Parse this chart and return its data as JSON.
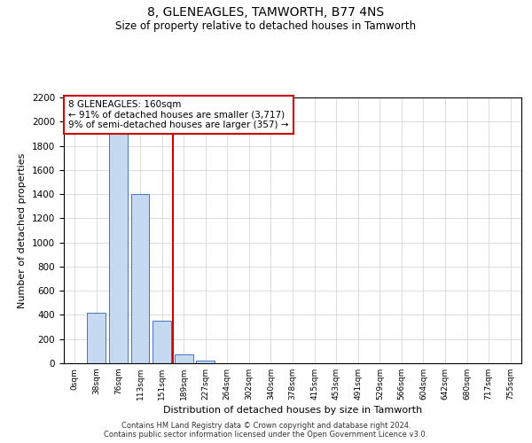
{
  "title": "8, GLENEAGLES, TAMWORTH, B77 4NS",
  "subtitle": "Size of property relative to detached houses in Tamworth",
  "xlabel": "Distribution of detached houses by size in Tamworth",
  "ylabel": "Number of detached properties",
  "bar_labels": [
    "0sqm",
    "38sqm",
    "76sqm",
    "113sqm",
    "151sqm",
    "189sqm",
    "227sqm",
    "264sqm",
    "302sqm",
    "340sqm",
    "378sqm",
    "415sqm",
    "453sqm",
    "491sqm",
    "529sqm",
    "566sqm",
    "604sqm",
    "642sqm",
    "680sqm",
    "717sqm",
    "755sqm"
  ],
  "bar_values": [
    0,
    420,
    1900,
    1400,
    350,
    70,
    20,
    0,
    0,
    0,
    0,
    0,
    0,
    0,
    0,
    0,
    0,
    0,
    0,
    0,
    0
  ],
  "bar_color": "#c5d9f1",
  "bar_edge_color": "#4472c4",
  "red_line_index": 4,
  "annotation_text": "8 GLENEAGLES: 160sqm\n← 91% of detached houses are smaller (3,717)\n9% of semi-detached houses are larger (357) →",
  "annotation_box_color": "#ffffff",
  "annotation_box_edge_color": "#cc0000",
  "red_line_color": "#cc0000",
  "ylim": [
    0,
    2200
  ],
  "yticks": [
    0,
    200,
    400,
    600,
    800,
    1000,
    1200,
    1400,
    1600,
    1800,
    2000,
    2200
  ],
  "grid_color": "#d0d0d0",
  "background_color": "#ffffff",
  "footer_line1": "Contains HM Land Registry data © Crown copyright and database right 2024.",
  "footer_line2": "Contains public sector information licensed under the Open Government Licence v3.0."
}
